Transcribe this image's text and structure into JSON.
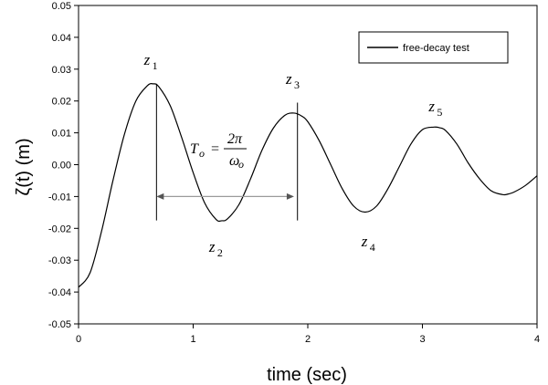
{
  "chart_data": {
    "type": "line",
    "xlabel": "time (sec)",
    "ylabel": "ζ(t) (m)",
    "xlim": [
      0,
      4
    ],
    "ylim": [
      -0.05,
      0.05
    ],
    "xticks": [
      "0",
      "1",
      "2",
      "3",
      "4"
    ],
    "yticks": [
      "0.05",
      "0.04",
      "0.03",
      "0.02",
      "0.01",
      "0.00",
      "-0.01",
      "-0.02",
      "-0.03",
      "-0.04",
      "-0.05"
    ],
    "legend": {
      "position": "top-right",
      "entries": [
        "free-decay test"
      ]
    },
    "series": [
      {
        "name": "free-decay test",
        "x": [
          0,
          0.1,
          0.2,
          0.3,
          0.4,
          0.5,
          0.6,
          0.65,
          0.7,
          0.8,
          0.9,
          1.0,
          1.1,
          1.2,
          1.25,
          1.3,
          1.4,
          1.5,
          1.6,
          1.7,
          1.8,
          1.88,
          1.95,
          2.0,
          2.1,
          2.2,
          2.3,
          2.4,
          2.5,
          2.6,
          2.7,
          2.8,
          2.9,
          3.0,
          3.1,
          3.15,
          3.2,
          3.3,
          3.4,
          3.5,
          3.6,
          3.7,
          3.75,
          3.8,
          3.9,
          4.0
        ],
        "y": [
          -0.0385,
          -0.034,
          -0.021,
          -0.005,
          0.0095,
          0.02,
          0.0248,
          0.0254,
          0.0245,
          0.0185,
          0.0085,
          -0.0025,
          -0.012,
          -0.0172,
          -0.0176,
          -0.017,
          -0.0125,
          -0.0045,
          0.0045,
          0.0115,
          0.0155,
          0.0162,
          0.0152,
          0.0135,
          0.0075,
          0.0,
          -0.0075,
          -0.013,
          -0.0149,
          -0.013,
          -0.0075,
          -0.0005,
          0.0065,
          0.011,
          0.0118,
          0.0116,
          0.0108,
          0.0065,
          0.0005,
          -0.0045,
          -0.0082,
          -0.0094,
          -0.0092,
          -0.0086,
          -0.0065,
          -0.0035
        ]
      }
    ],
    "annotations": {
      "peaks": [
        {
          "main": "z",
          "sub": "1",
          "x": 0.65,
          "y": 0.0254
        },
        {
          "main": "z",
          "sub": "2",
          "x": 1.25,
          "y": -0.0176
        },
        {
          "main": "z",
          "sub": "3",
          "x": 1.88,
          "y": 0.0162
        },
        {
          "main": "z",
          "sub": "4",
          "x": 2.5,
          "y": -0.0149
        },
        {
          "main": "z",
          "sub": "5",
          "x": 3.15,
          "y": 0.0116
        }
      ],
      "period": {
        "x_start": 0.68,
        "x_end": 1.88,
        "y": -0.01,
        "lhs_main": "T",
        "lhs_sub": "o",
        "eq_sign": "=",
        "numerator": "2π",
        "denominator_main": "ω",
        "denominator_sub": "o"
      },
      "markers": [
        {
          "x": 0.68,
          "y_from": 0.0254,
          "y_to": -0.0175
        },
        {
          "x": 1.91,
          "y_from": 0.0195,
          "y_to": -0.0175
        }
      ]
    }
  }
}
